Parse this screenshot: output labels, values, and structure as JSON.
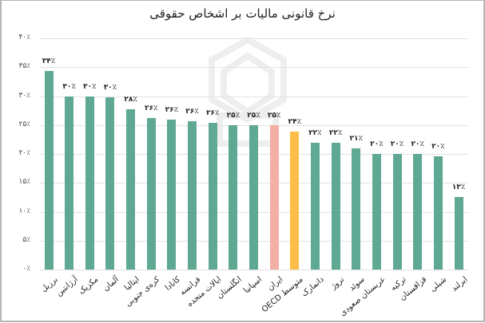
{
  "chart_data": {
    "type": "bar",
    "title": "نرخ قانونی مالیات بر اشخاص حقوقی",
    "xlabel": "",
    "ylabel": "",
    "ylim": [
      0,
      40
    ],
    "y_ticks": [
      "۰٪",
      "۵٪",
      "۱۰٪",
      "۱۵٪",
      "۲۰٪",
      "۲۵٪",
      "۳۰٪",
      "۳۵٪",
      "۴۰٪"
    ],
    "y_tick_values": [
      0,
      5,
      10,
      15,
      20,
      25,
      30,
      35,
      40
    ],
    "grid": true,
    "legend": "none",
    "categories": [
      "برزیل",
      "آرژانتین",
      "مکزیک",
      "آلمان",
      "ایتالیا",
      "کره‌ی جنوبی",
      "کانادا",
      "فرانسه",
      "ایالات متحده",
      "انگلستان",
      "اسپانیا",
      "ایران",
      "متوسط OECD",
      "دانمارک",
      "نروژ",
      "سوئد",
      "عربستان صعودی",
      "ترکیه",
      "قزاقستان",
      "شیلی",
      "ایرلند"
    ],
    "values": [
      34,
      30,
      30,
      30,
      28,
      26,
      26,
      26,
      26,
      25,
      25,
      25,
      24,
      22,
      22,
      21,
      20,
      20,
      20,
      20,
      13
    ],
    "value_labels": [
      "۳۴٪",
      "۳۰٪",
      "۳۰٪",
      "۳۰٪",
      "۲۸٪",
      "۲۶٪",
      "۲۶٪",
      "۲۶٪",
      "۲۶٪",
      "۲۵٪",
      "۲۵٪",
      "۲۵٪",
      "۲۴٪",
      "۲۲٪",
      "۲۲٪",
      "۲۱٪",
      "۲۰٪",
      "۲۰٪",
      "۲۰٪",
      "۲۰٪",
      "۱۳٪"
    ],
    "bar_heights_estimated": [
      34.4,
      30.0,
      30.0,
      29.8,
      27.7,
      26.2,
      26.0,
      25.6,
      25.4,
      25.0,
      25.0,
      25.0,
      23.8,
      22.0,
      22.0,
      21.0,
      20.0,
      20.0,
      20.0,
      19.6,
      12.5
    ],
    "colors": {
      "default": "#5fa894",
      "iran": "#f2a397",
      "oecd_average": "#fdbd48"
    },
    "highlight": {
      "ایران": "iran",
      "متوسط OECD": "oecd_average"
    }
  }
}
